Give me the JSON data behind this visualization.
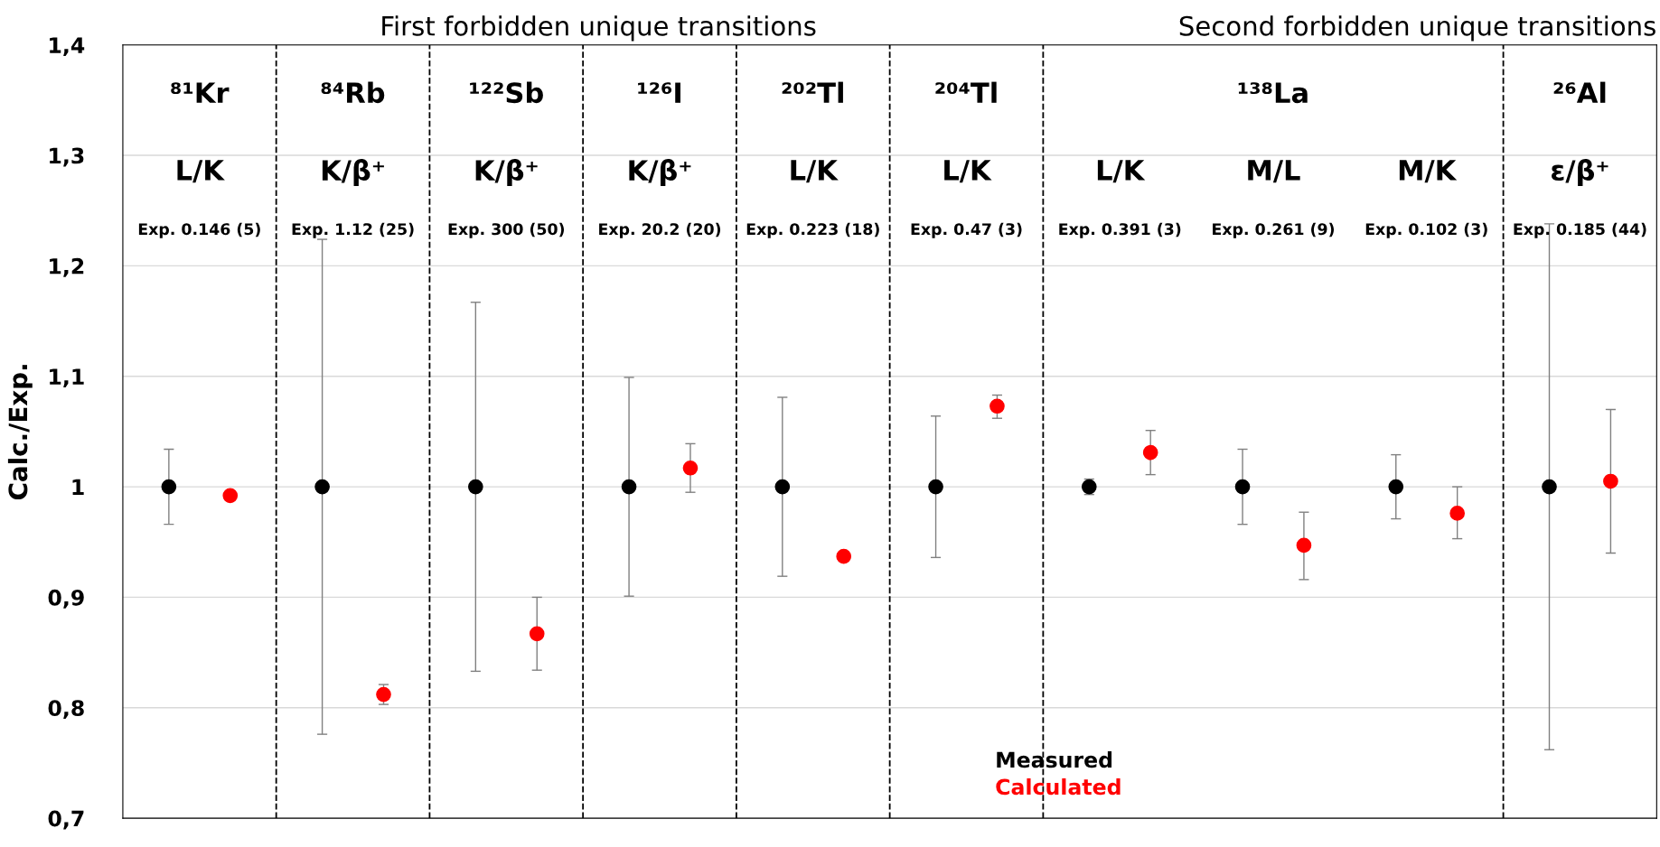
{
  "chart_data": {
    "type": "scatter",
    "ylabel": "Calc./Exp.",
    "categories": [
      "L/K",
      "K/β⁺",
      "K/β⁺",
      "K/β⁺",
      "L/K",
      "L/K",
      "L/K",
      "M/L",
      "M/K",
      "ε/β⁺"
    ],
    "series": [
      {
        "name": "Measured",
        "color": "#000000",
        "values": [
          1,
          1,
          1,
          1,
          1,
          1,
          1,
          1,
          1,
          1
        ],
        "errors": [
          0.034,
          0.224,
          0.167,
          0.099,
          0.081,
          0.064,
          0.007,
          0.034,
          0.029,
          0.238
        ]
      },
      {
        "name": "Calculated",
        "color": "#ff0000",
        "values": [
          0.992,
          0.812,
          0.867,
          1.017,
          0.937,
          1.073,
          1.031,
          0.947,
          0.976,
          1.005
        ],
        "errors": [
          null,
          0.009,
          0.033,
          [
            0.995,
            1.039
          ],
          null,
          [
            1.062,
            1.083
          ],
          0.02,
          [
            0.916,
            0.977
          ],
          [
            0.953,
            1.0
          ],
          0.065
        ]
      }
    ],
    "ylim": [
      0.7,
      1.4
    ],
    "yticks": [
      {
        "value": 0.7,
        "label": "0,7"
      },
      {
        "value": 0.8,
        "label": "0,8"
      },
      {
        "value": 0.9,
        "label": "0,9"
      },
      1,
      {
        "value": 1.1,
        "label": "1,1"
      },
      {
        "value": 1.2,
        "label": "1,2"
      },
      {
        "value": 1.3,
        "label": "1,3"
      },
      {
        "value": 1.4,
        "label": "1,4"
      }
    ],
    "tick_labels": "y",
    "grid": "y",
    "legend": "bottom",
    "marker": "circle",
    "annotations": [
      "First forbidden unique transitions",
      "Second forbidden unique transitions",
      "⁸¹Kr",
      "⁸⁴Rb",
      "¹²²Sb",
      "¹²⁶I",
      "²⁰²Tl",
      "²⁰⁴Tl",
      "¹³⁸La",
      "²⁶Al",
      "Exp. 0.146 (5)",
      "Exp. 1.12 (25)",
      "Exp. 300 (50)",
      "Exp. 20.2 (20)",
      "Exp. 0.223 (18)",
      "Exp. 0.47 (3)",
      "Exp. 0.391 (3)",
      "Exp. 0.261 (9)",
      "Exp. 0.102 (3)",
      "Exp. 0.185 (44)"
    ]
  }
}
